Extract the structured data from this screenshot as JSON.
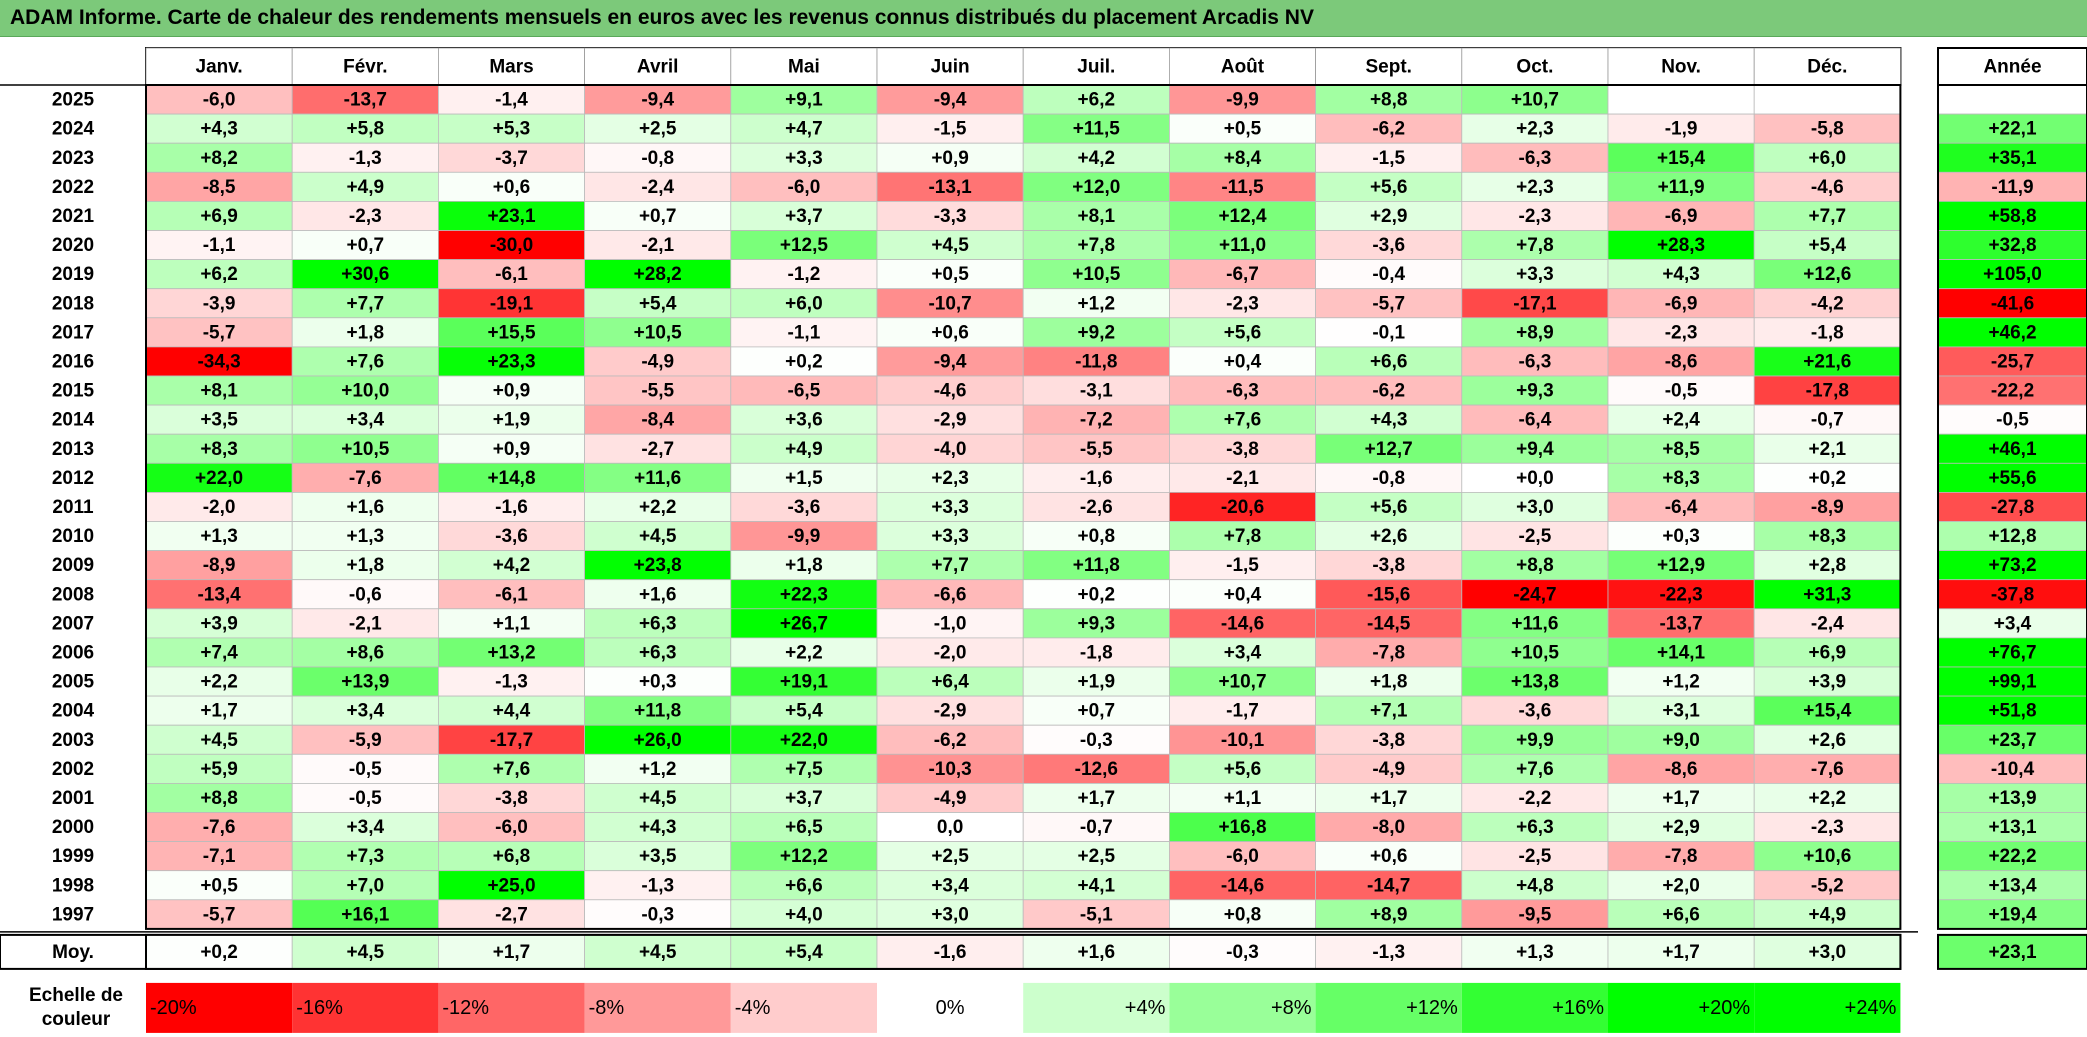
{
  "title": "ADAM Informe. Carte de chaleur des rendements mensuels en euros avec les revenus connus distribués du placement Arcadis NV",
  "chart_data": {
    "type": "heatmap",
    "columns": [
      "Janv.",
      "Févr.",
      "Mars",
      "Avril",
      "Mai",
      "Juin",
      "Juil.",
      "Août",
      "Sept.",
      "Oct.",
      "Nov.",
      "Déc."
    ],
    "year_header": "Année",
    "rows": [
      {
        "year": "2025",
        "values": [
          "-6,0",
          "-13,7",
          "-1,4",
          "-9,4",
          "+9,1",
          "-9,4",
          "+6,2",
          "-9,9",
          "+8,8",
          "+10,7",
          "",
          ""
        ],
        "annual": ""
      },
      {
        "year": "2024",
        "values": [
          "+4,3",
          "+5,8",
          "+5,3",
          "+2,5",
          "+4,7",
          "-1,5",
          "+11,5",
          "+0,5",
          "-6,2",
          "+2,3",
          "-1,9",
          "-5,8"
        ],
        "annual": "+22,1"
      },
      {
        "year": "2023",
        "values": [
          "+8,2",
          "-1,3",
          "-3,7",
          "-0,8",
          "+3,3",
          "+0,9",
          "+4,2",
          "+8,4",
          "-1,5",
          "-6,3",
          "+15,4",
          "+6,0"
        ],
        "annual": "+35,1"
      },
      {
        "year": "2022",
        "values": [
          "-8,5",
          "+4,9",
          "+0,6",
          "-2,4",
          "-6,0",
          "-13,1",
          "+12,0",
          "-11,5",
          "+5,6",
          "+2,3",
          "+11,9",
          "-4,6"
        ],
        "annual": "-11,9"
      },
      {
        "year": "2021",
        "values": [
          "+6,9",
          "-2,3",
          "+23,1",
          "+0,7",
          "+3,7",
          "-3,3",
          "+8,1",
          "+12,4",
          "+2,9",
          "-2,3",
          "-6,9",
          "+7,7"
        ],
        "annual": "+58,8"
      },
      {
        "year": "2020",
        "values": [
          "-1,1",
          "+0,7",
          "-30,0",
          "-2,1",
          "+12,5",
          "+4,5",
          "+7,8",
          "+11,0",
          "-3,6",
          "+7,8",
          "+28,3",
          "+5,4"
        ],
        "annual": "+32,8"
      },
      {
        "year": "2019",
        "values": [
          "+6,2",
          "+30,6",
          "-6,1",
          "+28,2",
          "-1,2",
          "+0,5",
          "+10,5",
          "-6,7",
          "-0,4",
          "+3,3",
          "+4,3",
          "+12,6"
        ],
        "annual": "+105,0"
      },
      {
        "year": "2018",
        "values": [
          "-3,9",
          "+7,7",
          "-19,1",
          "+5,4",
          "+6,0",
          "-10,7",
          "+1,2",
          "-2,3",
          "-5,7",
          "-17,1",
          "-6,9",
          "-4,2"
        ],
        "annual": "-41,6"
      },
      {
        "year": "2017",
        "values": [
          "-5,7",
          "+1,8",
          "+15,5",
          "+10,5",
          "-1,1",
          "+0,6",
          "+9,2",
          "+5,6",
          "-0,1",
          "+8,9",
          "-2,3",
          "-1,8"
        ],
        "annual": "+46,2"
      },
      {
        "year": "2016",
        "values": [
          "-34,3",
          "+7,6",
          "+23,3",
          "-4,9",
          "+0,2",
          "-9,4",
          "-11,8",
          "+0,4",
          "+6,6",
          "-6,3",
          "-8,6",
          "+21,6"
        ],
        "annual": "-25,7"
      },
      {
        "year": "2015",
        "values": [
          "+8,1",
          "+10,0",
          "+0,9",
          "-5,5",
          "-6,5",
          "-4,6",
          "-3,1",
          "-6,3",
          "-6,2",
          "+9,3",
          "-0,5",
          "-17,8"
        ],
        "annual": "-22,2"
      },
      {
        "year": "2014",
        "values": [
          "+3,5",
          "+3,4",
          "+1,9",
          "-8,4",
          "+3,6",
          "-2,9",
          "-7,2",
          "+7,6",
          "+4,3",
          "-6,4",
          "+2,4",
          "-0,7"
        ],
        "annual": "-0,5"
      },
      {
        "year": "2013",
        "values": [
          "+8,3",
          "+10,5",
          "+0,9",
          "-2,7",
          "+4,9",
          "-4,0",
          "-5,5",
          "-3,8",
          "+12,7",
          "+9,4",
          "+8,5",
          "+2,1"
        ],
        "annual": "+46,1"
      },
      {
        "year": "2012",
        "values": [
          "+22,0",
          "-7,6",
          "+14,8",
          "+11,6",
          "+1,5",
          "+2,3",
          "-1,6",
          "-2,1",
          "-0,8",
          "+0,0",
          "+8,3",
          "+0,2"
        ],
        "annual": "+55,6"
      },
      {
        "year": "2011",
        "values": [
          "-2,0",
          "+1,6",
          "-1,6",
          "+2,2",
          "-3,6",
          "+3,3",
          "-2,6",
          "-20,6",
          "+5,6",
          "+3,0",
          "-6,4",
          "-8,9"
        ],
        "annual": "-27,8"
      },
      {
        "year": "2010",
        "values": [
          "+1,3",
          "+1,3",
          "-3,6",
          "+4,5",
          "-9,9",
          "+3,3",
          "+0,8",
          "+7,8",
          "+2,6",
          "-2,5",
          "+0,3",
          "+8,3"
        ],
        "annual": "+12,8"
      },
      {
        "year": "2009",
        "values": [
          "-8,9",
          "+1,8",
          "+4,2",
          "+23,8",
          "+1,8",
          "+7,7",
          "+11,8",
          "-1,5",
          "-3,8",
          "+8,8",
          "+12,9",
          "+2,8"
        ],
        "annual": "+73,2"
      },
      {
        "year": "2008",
        "values": [
          "-13,4",
          "-0,6",
          "-6,1",
          "+1,6",
          "+22,3",
          "-6,6",
          "+0,2",
          "+0,4",
          "-15,6",
          "-24,7",
          "-22,3",
          "+31,3"
        ],
        "annual": "-37,8"
      },
      {
        "year": "2007",
        "values": [
          "+3,9",
          "-2,1",
          "+1,1",
          "+6,3",
          "+26,7",
          "-1,0",
          "+9,3",
          "-14,6",
          "-14,5",
          "+11,6",
          "-13,7",
          "-2,4"
        ],
        "annual": "+3,4"
      },
      {
        "year": "2006",
        "values": [
          "+7,4",
          "+8,6",
          "+13,2",
          "+6,3",
          "+2,2",
          "-2,0",
          "-1,8",
          "+3,4",
          "-7,8",
          "+10,5",
          "+14,1",
          "+6,9"
        ],
        "annual": "+76,7"
      },
      {
        "year": "2005",
        "values": [
          "+2,2",
          "+13,9",
          "-1,3",
          "+0,3",
          "+19,1",
          "+6,4",
          "+1,9",
          "+10,7",
          "+1,8",
          "+13,8",
          "+1,2",
          "+3,9"
        ],
        "annual": "+99,1"
      },
      {
        "year": "2004",
        "values": [
          "+1,7",
          "+3,4",
          "+4,4",
          "+11,8",
          "+5,4",
          "-2,9",
          "+0,7",
          "-1,7",
          "+7,1",
          "-3,6",
          "+3,1",
          "+15,4"
        ],
        "annual": "+51,8"
      },
      {
        "year": "2003",
        "values": [
          "+4,5",
          "-5,9",
          "-17,7",
          "+26,0",
          "+22,0",
          "-6,2",
          "-0,3",
          "-10,1",
          "-3,8",
          "+9,9",
          "+9,0",
          "+2,6"
        ],
        "annual": "+23,7"
      },
      {
        "year": "2002",
        "values": [
          "+5,9",
          "-0,5",
          "+7,6",
          "+1,2",
          "+7,5",
          "-10,3",
          "-12,6",
          "+5,6",
          "-4,9",
          "+7,6",
          "-8,6",
          "-7,6"
        ],
        "annual": "-10,4"
      },
      {
        "year": "2001",
        "values": [
          "+8,8",
          "-0,5",
          "-3,8",
          "+4,5",
          "+3,7",
          "-4,9",
          "+1,7",
          "+1,1",
          "+1,7",
          "-2,2",
          "+1,7",
          "+2,2"
        ],
        "annual": "+13,9"
      },
      {
        "year": "2000",
        "values": [
          "-7,6",
          "+3,4",
          "-6,0",
          "+4,3",
          "+6,5",
          "0,0",
          "-0,7",
          "+16,8",
          "-8,0",
          "+6,3",
          "+2,9",
          "-2,3"
        ],
        "annual": "+13,1"
      },
      {
        "year": "1999",
        "values": [
          "-7,1",
          "+7,3",
          "+6,8",
          "+3,5",
          "+12,2",
          "+2,5",
          "+2,5",
          "-6,0",
          "+0,6",
          "-2,5",
          "-7,8",
          "+10,6"
        ],
        "annual": "+22,2"
      },
      {
        "year": "1998",
        "values": [
          "+0,5",
          "+7,0",
          "+25,0",
          "-1,3",
          "+6,6",
          "+3,4",
          "+4,1",
          "-14,6",
          "-14,7",
          "+4,8",
          "+2,0",
          "-5,2"
        ],
        "annual": "+13,4"
      },
      {
        "year": "1997",
        "values": [
          "-5,7",
          "+16,1",
          "-2,7",
          "-0,3",
          "+4,0",
          "+3,0",
          "-5,1",
          "+0,8",
          "+8,9",
          "-9,5",
          "+6,6",
          "+4,9"
        ],
        "annual": "+19,4"
      }
    ],
    "average": {
      "label": "Moy.",
      "values": [
        "+0,2",
        "+4,5",
        "+1,7",
        "+4,5",
        "+5,4",
        "-1,6",
        "+1,6",
        "-0,3",
        "-1,3",
        "+1,3",
        "+1,7",
        "+3,0"
      ],
      "annual": "+23,1"
    },
    "scale": {
      "label_line1": "Echelle de",
      "label_line2": "couleur",
      "steps": [
        "-20%",
        "-16%",
        "-12%",
        "-8%",
        "-4%",
        "0%",
        "+4%",
        "+8%",
        "+12%",
        "+16%",
        "+20%",
        "+24%"
      ]
    },
    "colors": {
      "negative_max": "#ff0000",
      "neutral": "#ffffff",
      "positive_max": "#00ff00",
      "title_bg": "#7cc97a"
    }
  }
}
